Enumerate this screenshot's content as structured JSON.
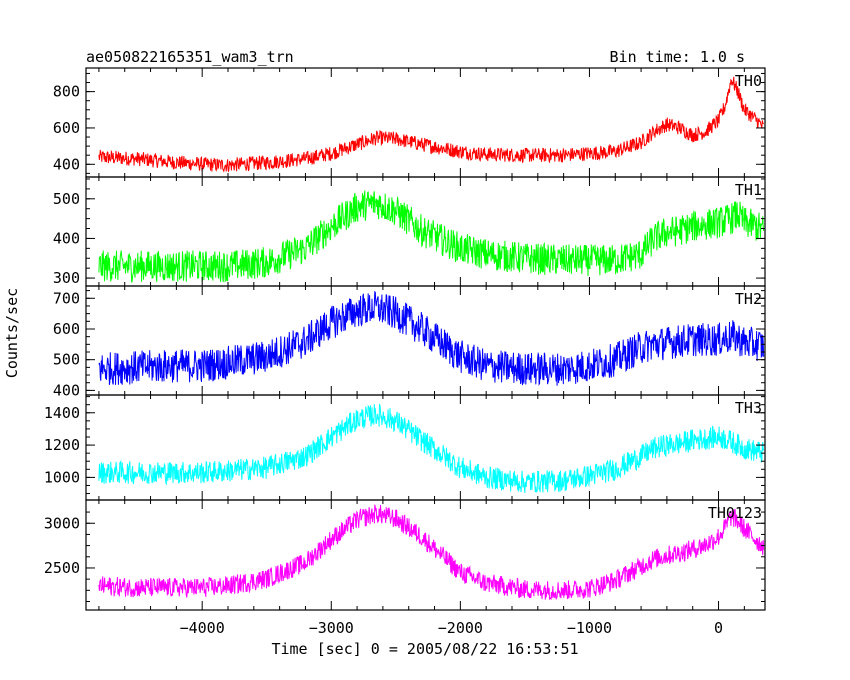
{
  "header": {
    "title": "ae050822165351_wam3_trn",
    "bin_time": "Bin time: 1.0 s"
  },
  "chart_data": {
    "type": "line",
    "xlabel": "Time [sec] 0 = 2005/08/22 16:53:51",
    "ylabel": "Counts/sec",
    "xlim": [
      -4900,
      360
    ],
    "x_ticks": [
      -4000,
      -3000,
      -2000,
      -1000,
      0
    ],
    "x_tick_labels": [
      "−4000",
      "−3000",
      "−2000",
      "−1000",
      "0"
    ],
    "x_minor_step": 200,
    "x": [
      -4800,
      -4500,
      -4200,
      -4000,
      -3800,
      -3500,
      -3200,
      -3000,
      -2800,
      -2650,
      -2500,
      -2300,
      -2000,
      -1800,
      -1500,
      -1200,
      -1000,
      -800,
      -600,
      -500,
      -400,
      -300,
      -200,
      -100,
      0,
      50,
      100,
      150,
      200,
      300,
      350
    ],
    "series": [
      {
        "name": "TH0",
        "color": "#ff0000",
        "ylim": [
          330,
          930
        ],
        "y_ticks": [
          400,
          600,
          800
        ],
        "y_tick_labels": [
          "400",
          "600",
          "800"
        ],
        "noise": 40,
        "values": [
          440,
          430,
          410,
          400,
          395,
          410,
          430,
          460,
          510,
          545,
          540,
          510,
          470,
          455,
          450,
          450,
          460,
          470,
          520,
          580,
          620,
          600,
          560,
          580,
          640,
          720,
          870,
          800,
          700,
          640,
          600
        ]
      },
      {
        "name": "TH1",
        "color": "#00ff00",
        "ylim": [
          280,
          555
        ],
        "y_ticks": [
          300,
          400,
          500
        ],
        "y_tick_labels": [
          "300",
          "400",
          "500"
        ],
        "noise": 40,
        "values": [
          330,
          330,
          330,
          330,
          330,
          340,
          375,
          430,
          480,
          490,
          470,
          420,
          375,
          360,
          350,
          345,
          345,
          345,
          360,
          400,
          415,
          420,
          430,
          435,
          440,
          445,
          450,
          460,
          440,
          430,
          420
        ]
      },
      {
        "name": "TH2",
        "color": "#0000ff",
        "ylim": [
          385,
          740
        ],
        "y_ticks": [
          400,
          500,
          600,
          700
        ],
        "y_tick_labels": [
          "400",
          "500",
          "600",
          "700"
        ],
        "noise": 55,
        "values": [
          470,
          475,
          480,
          480,
          490,
          510,
          560,
          620,
          660,
          670,
          650,
          600,
          510,
          480,
          470,
          470,
          480,
          500,
          540,
          550,
          555,
          560,
          565,
          565,
          565,
          570,
          575,
          570,
          555,
          550,
          545
        ]
      },
      {
        "name": "TH3",
        "color": "#00ffff",
        "ylim": [
          860,
          1510
        ],
        "y_ticks": [
          1000,
          1200,
          1400
        ],
        "y_tick_labels": [
          "1000",
          "1200",
          "1400"
        ],
        "noise": 70,
        "values": [
          1030,
          1030,
          1030,
          1030,
          1040,
          1060,
          1130,
          1250,
          1360,
          1390,
          1350,
          1230,
          1060,
          1000,
          970,
          980,
          1010,
          1050,
          1130,
          1180,
          1200,
          1210,
          1230,
          1240,
          1250,
          1240,
          1220,
          1200,
          1180,
          1160,
          1150
        ]
      },
      {
        "name": "TH0123",
        "color": "#ff00ff",
        "ylim": [
          2030,
          3260
        ],
        "y_ticks": [
          2500,
          3000
        ],
        "y_tick_labels": [
          "2500",
          "3000"
        ],
        "noise": 110,
        "values": [
          2300,
          2280,
          2280,
          2280,
          2300,
          2380,
          2560,
          2820,
          3040,
          3110,
          3050,
          2850,
          2450,
          2330,
          2260,
          2250,
          2270,
          2360,
          2520,
          2600,
          2640,
          2670,
          2710,
          2760,
          2850,
          2950,
          3080,
          3020,
          2940,
          2800,
          2740
        ]
      }
    ]
  }
}
